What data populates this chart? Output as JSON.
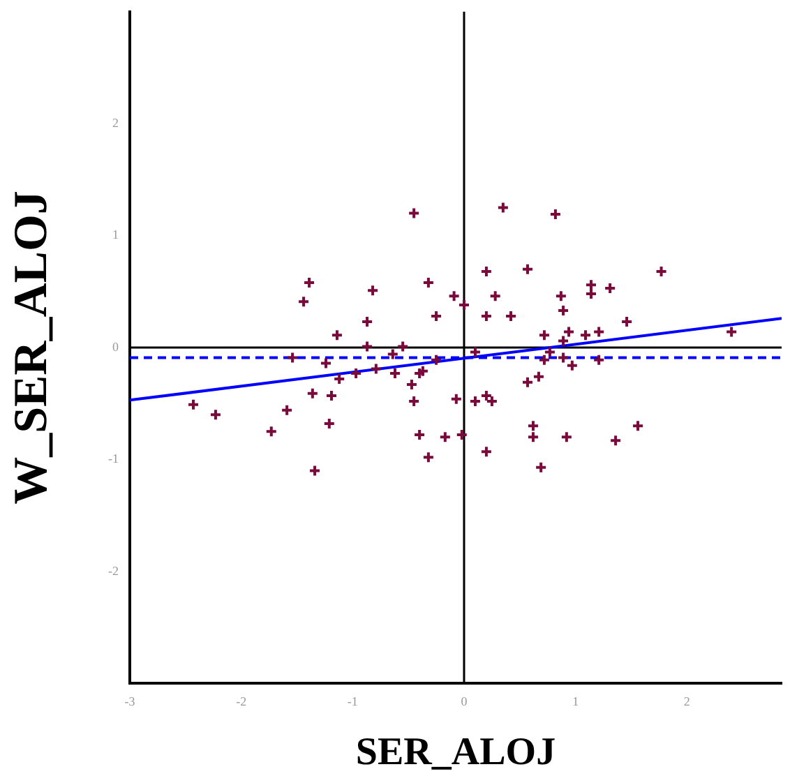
{
  "chart_data": {
    "type": "scatter",
    "xlabel": "SER_ALOJ",
    "ylabel": "W_SER_ALOJ",
    "xlim": [
      -3,
      2.85
    ],
    "ylim": [
      -3,
      3
    ],
    "xticks": [
      -3,
      -2,
      -1,
      0,
      1,
      2
    ],
    "yticks": [
      -2,
      -1,
      0,
      1,
      2
    ],
    "grid": false,
    "legend": false,
    "marker": "cross",
    "series": [
      {
        "type": "scatter",
        "color": "#7b0a3c",
        "x": [
          -0.45,
          0.35,
          0.82,
          -1.39,
          -1.44,
          -0.82,
          -0.32,
          -0.09,
          0.2,
          0.28,
          0.57,
          1.77,
          0,
          1.14,
          1.14,
          1.31,
          0.87,
          0.89,
          0.2,
          0.42,
          1.46,
          2.4,
          0.72,
          0.94,
          1.09,
          1.21,
          0.89,
          0.1,
          0.77,
          0.72,
          0.89,
          0.97,
          1.21,
          0.57,
          0.67,
          -0.07,
          0.1,
          0.2,
          0.25,
          0.62,
          0.62,
          0.92,
          1.36,
          1.56,
          -0.02,
          -0.17,
          0.2,
          0.69,
          -0.25,
          -0.87,
          -1.14,
          -0.87,
          -0.55,
          -1.54,
          -1.24,
          -0.64,
          -0.79,
          -0.97,
          -0.62,
          -1.12,
          -0.25,
          -0.4,
          -0.37,
          -0.47,
          -0.45,
          -1.36,
          -1.19,
          -2.43,
          -2.23,
          -1.59,
          -1.73,
          -1.21,
          -0.4,
          -0.32,
          -1.34
        ],
        "values": [
          1.2,
          1.25,
          1.19,
          0.58,
          0.41,
          0.51,
          0.58,
          0.46,
          0.68,
          0.46,
          0.7,
          0.68,
          0.38,
          0.56,
          0.48,
          0.53,
          0.46,
          0.33,
          0.28,
          0.28,
          0.23,
          0.14,
          0.11,
          0.14,
          0.11,
          0.14,
          0.06,
          -0.04,
          -0.04,
          -0.11,
          -0.09,
          -0.16,
          -0.11,
          -0.31,
          -0.26,
          -0.46,
          -0.48,
          -0.43,
          -0.48,
          -0.7,
          -0.8,
          -0.8,
          -0.83,
          -0.7,
          -0.78,
          -0.8,
          -0.93,
          -1.07,
          0.28,
          0.23,
          0.11,
          0.01,
          0.01,
          -0.09,
          -0.14,
          -0.06,
          -0.19,
          -0.23,
          -0.23,
          -0.28,
          -0.11,
          -0.23,
          -0.21,
          -0.33,
          -0.48,
          -0.41,
          -0.43,
          -0.51,
          -0.6,
          -0.56,
          -0.75,
          -0.68,
          -0.78,
          -0.98,
          -1.1
        ]
      },
      {
        "type": "line",
        "color": "#0000ff",
        "x": [
          -3,
          2.85
        ],
        "values": [
          -0.47,
          0.26
        ],
        "marker": "none",
        "line_style": "solid"
      }
    ],
    "ref_lines": [
      {
        "axis": "x",
        "value": 0,
        "color": "#000000",
        "line_style": "solid"
      },
      {
        "axis": "y",
        "value": 0,
        "color": "#000000",
        "line_style": "solid"
      },
      {
        "axis": "y",
        "value": -0.09,
        "color": "#0000ff",
        "line_style": "dashed"
      }
    ]
  }
}
